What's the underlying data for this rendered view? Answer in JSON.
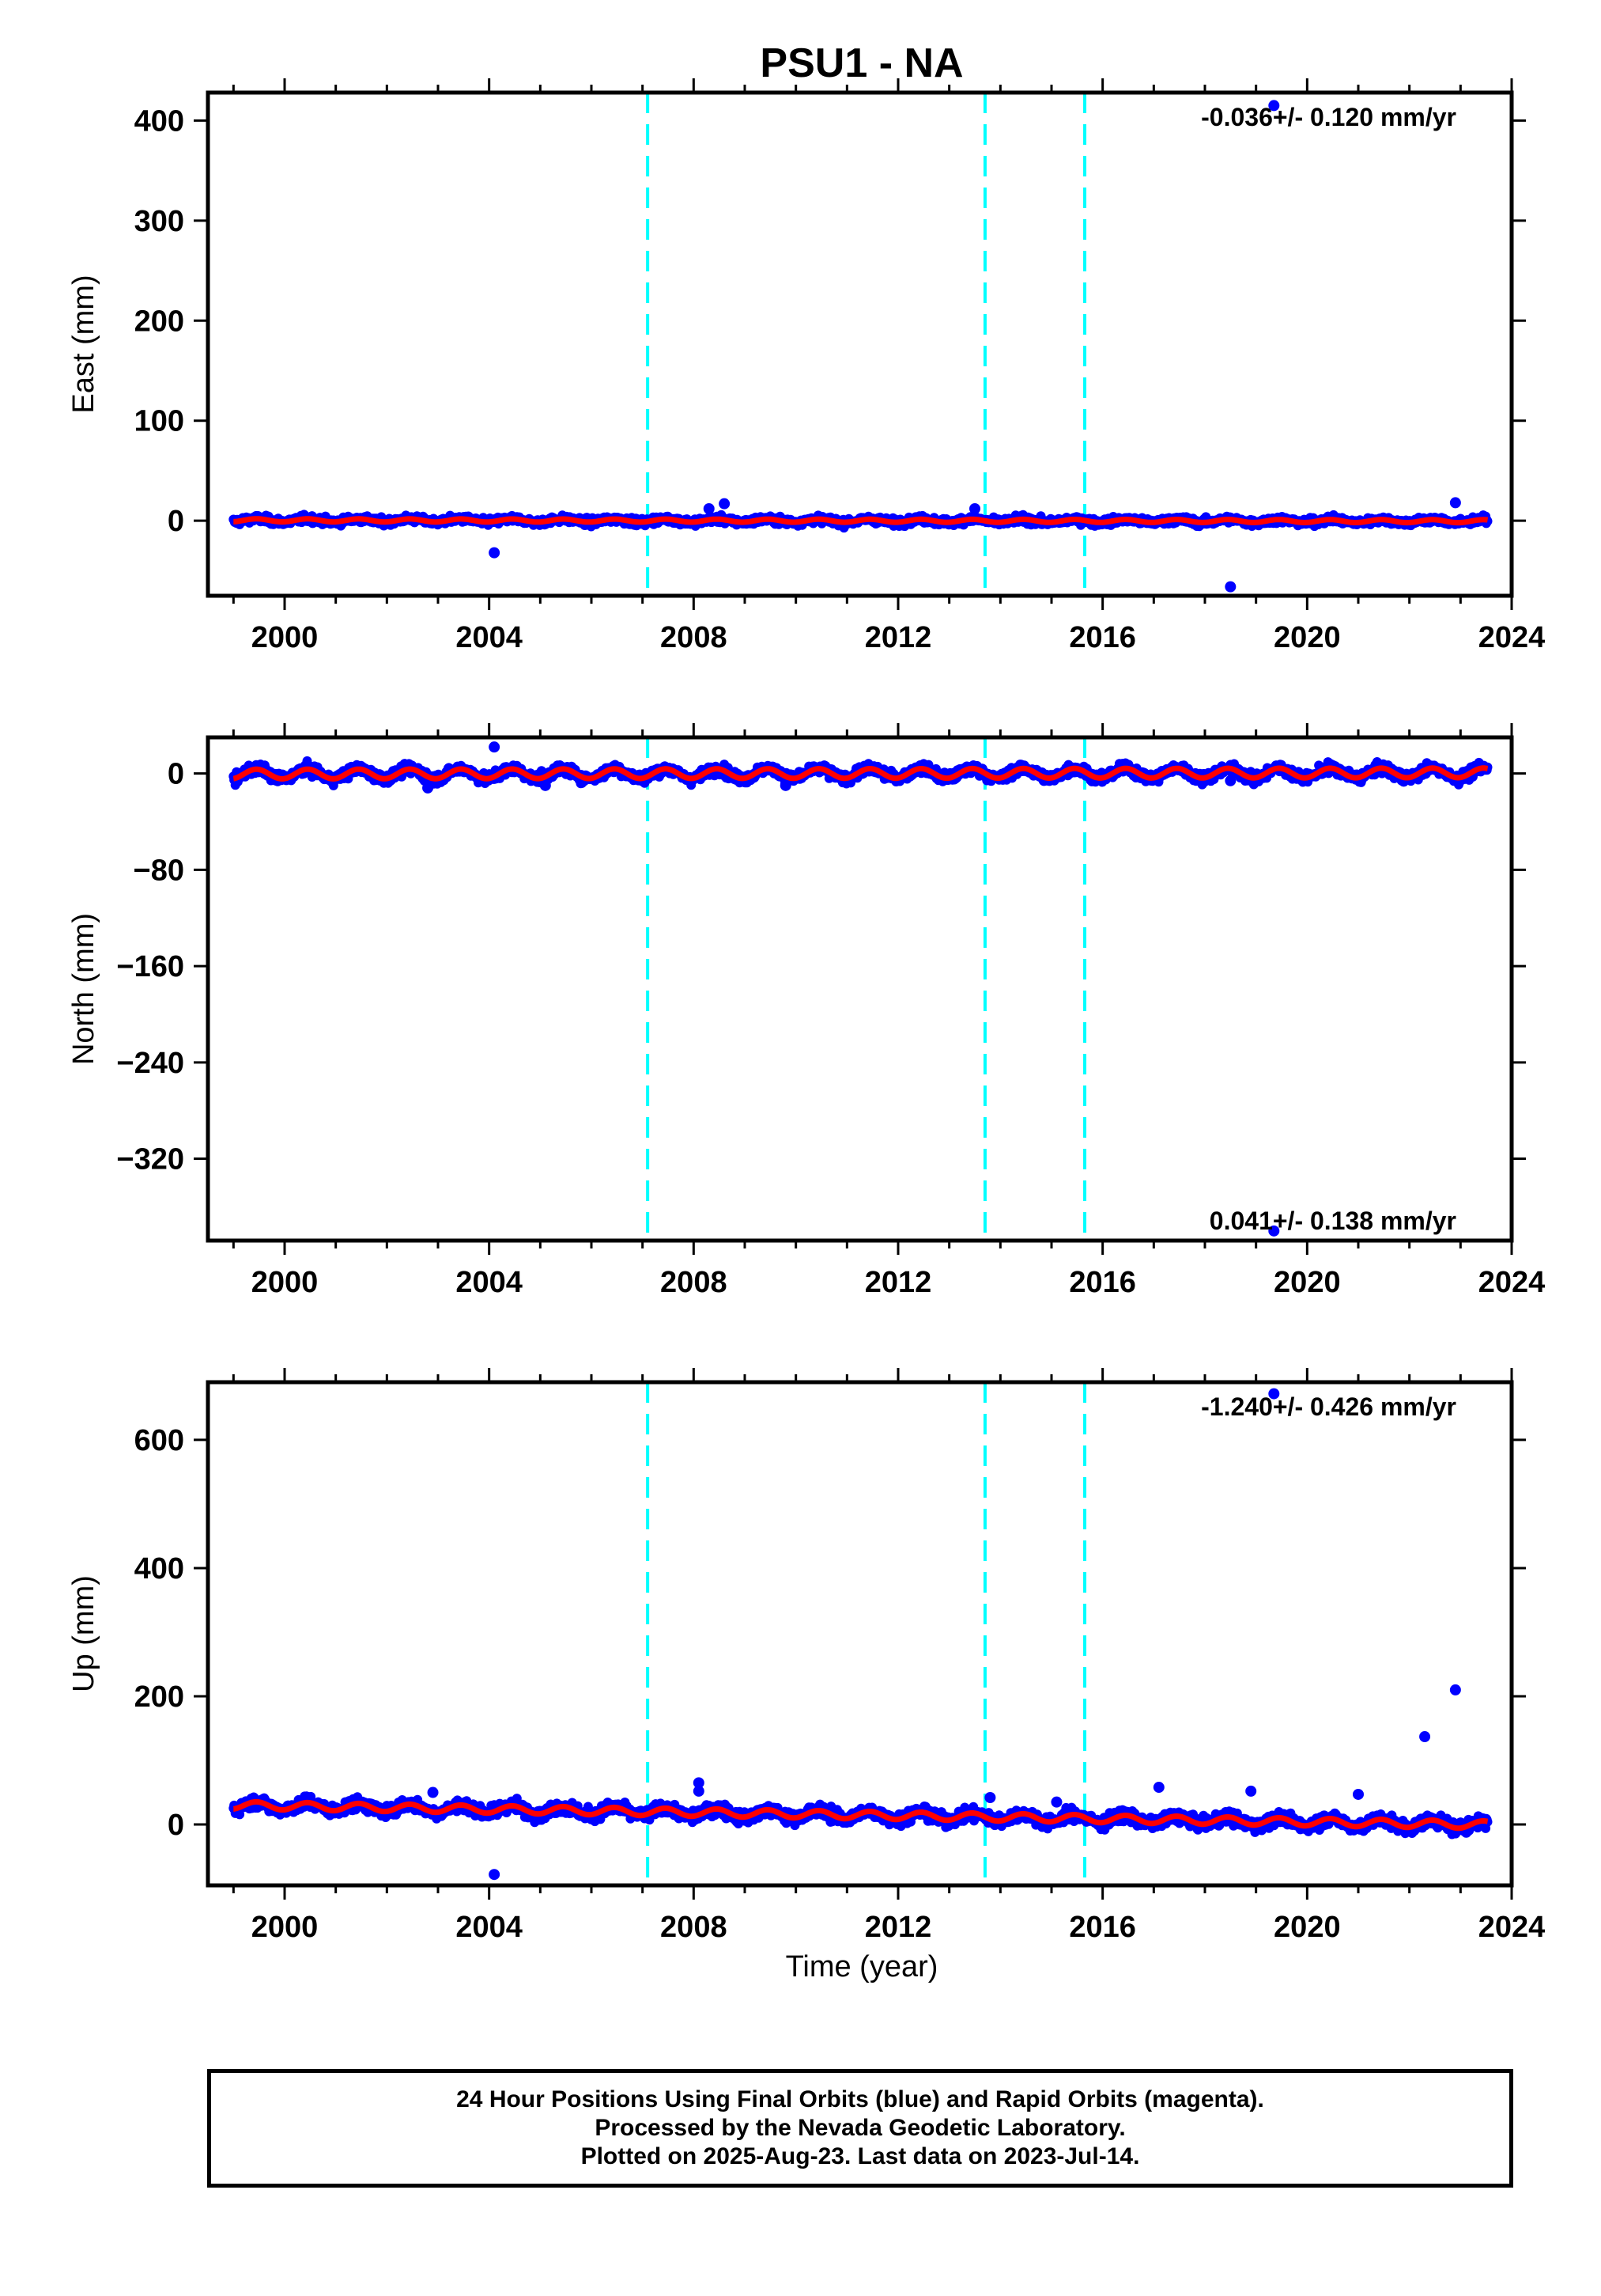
{
  "title": "PSU1 - NA",
  "xlabel": "Time (year)",
  "colors": {
    "final_orbits": "#0000ff",
    "model_fit": "#ff0000",
    "offset_markers": "#00ffff",
    "frame": "#000000"
  },
  "chart_data": [
    {
      "type": "scatter",
      "component": "East",
      "ylabel": "East (mm)",
      "ylim": [
        -75,
        428
      ],
      "xlim": [
        1998.5,
        2024.0
      ],
      "yticks": [
        0,
        100,
        200,
        300,
        400
      ],
      "xticks": [
        2000,
        2004,
        2008,
        2012,
        2016,
        2020,
        2024
      ],
      "rate_label": "-0.036+/- 0.120 mm/yr",
      "rate_label_position": "top-right",
      "offset_lines": [
        2007.1,
        2013.7,
        2015.65
      ],
      "trend": {
        "slope_mm_per_yr": -0.036,
        "intercept_mm": 0,
        "seasonal_amplitude_mm": 1.5
      },
      "data_span": [
        1999.0,
        2023.53
      ],
      "scatter_mm": 2.5,
      "outliers": [
        {
          "x": 2004.1,
          "y": -32
        },
        {
          "x": 2008.3,
          "y": 12
        },
        {
          "x": 2008.6,
          "y": 17
        },
        {
          "x": 2013.5,
          "y": 12
        },
        {
          "x": 2018.5,
          "y": -66
        },
        {
          "x": 2019.35,
          "y": 415
        },
        {
          "x": 2022.9,
          "y": 18
        }
      ]
    },
    {
      "type": "scatter",
      "component": "North",
      "ylabel": "North (mm)",
      "ylim": [
        -388,
        30
      ],
      "xlim": [
        1998.5,
        2024.0
      ],
      "yticks": [
        0,
        -80,
        -160,
        -240,
        -320
      ],
      "xticks": [
        2000,
        2004,
        2008,
        2012,
        2016,
        2020,
        2024
      ],
      "rate_label": "0.041+/- 0.138 mm/yr",
      "rate_label_position": "bottom-right",
      "offset_lines": [
        2007.1,
        2013.7,
        2015.65
      ],
      "trend": {
        "slope_mm_per_yr": 0.041,
        "intercept_mm": 0,
        "seasonal_amplitude_mm": 4
      },
      "data_span": [
        1999.0,
        2023.53
      ],
      "scatter_mm": 3,
      "outliers": [
        {
          "x": 2004.1,
          "y": 22
        },
        {
          "x": 2002.8,
          "y": -12
        },
        {
          "x": 2005.1,
          "y": -10
        },
        {
          "x": 2009.8,
          "y": -10
        },
        {
          "x": 2018.5,
          "y": -6
        },
        {
          "x": 2019.35,
          "y": -380
        }
      ]
    },
    {
      "type": "scatter",
      "component": "Up",
      "ylabel": "Up (mm)",
      "ylim": [
        -95,
        690
      ],
      "xlim": [
        1998.5,
        2024.0
      ],
      "yticks": [
        0,
        200,
        400,
        600
      ],
      "xticks": [
        2000,
        2004,
        2008,
        2012,
        2016,
        2020,
        2024
      ],
      "rate_label": "-1.240+/- 0.426 mm/yr",
      "rate_label_position": "top-right",
      "offset_lines": [
        2007.1,
        2013.7,
        2015.65
      ],
      "trend": {
        "slope_mm_per_yr": -1.24,
        "intercept_mm": 15,
        "seasonal_amplitude_mm": 6
      },
      "data_span": [
        1999.0,
        2023.53
      ],
      "scatter_mm": 7,
      "outliers": [
        {
          "x": 2004.1,
          "y": -78
        },
        {
          "x": 2002.9,
          "y": 50
        },
        {
          "x": 2008.1,
          "y": 65
        },
        {
          "x": 2008.1,
          "y": 52
        },
        {
          "x": 2013.8,
          "y": 42
        },
        {
          "x": 2015.1,
          "y": 35
        },
        {
          "x": 2017.1,
          "y": 58
        },
        {
          "x": 2018.9,
          "y": 52
        },
        {
          "x": 2019.35,
          "y": 672
        },
        {
          "x": 2021.0,
          "y": 47
        },
        {
          "x": 2022.3,
          "y": 137
        },
        {
          "x": 2022.9,
          "y": 210
        }
      ]
    }
  ],
  "footer": {
    "line1": "24 Hour Positions Using Final Orbits (blue) and Rapid Orbits (magenta).",
    "line2": "Processed by the Nevada Geodetic Laboratory.",
    "line3": "Plotted on 2025-Aug-23. Last data on 2023-Jul-14."
  }
}
